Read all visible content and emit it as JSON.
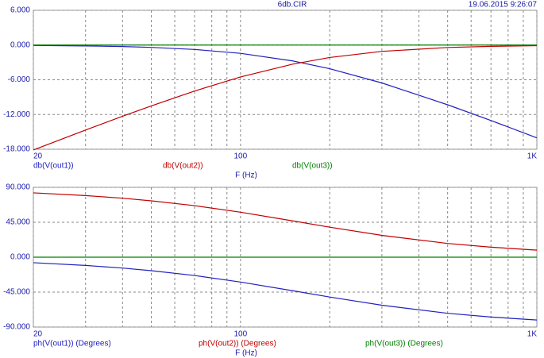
{
  "header": {
    "title": "6db.CIR",
    "timestamp": "19.06.2015 9:26:07"
  },
  "chart_data": [
    {
      "type": "line",
      "xlabel": "F (Hz)",
      "xlog": true,
      "grid": true,
      "x": [
        20,
        30,
        40,
        50,
        70,
        100,
        150,
        200,
        300,
        500,
        700,
        1000
      ],
      "xlim": [
        20,
        1000
      ],
      "xticks": [
        20,
        100,
        {
          "value": 1000,
          "label": "1K"
        }
      ],
      "xminor": [
        30,
        40,
        50,
        60,
        70,
        80,
        90,
        200,
        300,
        400,
        500,
        600,
        700,
        800,
        900
      ],
      "ylim": [
        -18,
        6
      ],
      "yticks": [
        {
          "value": 6,
          "label": "6.000"
        },
        {
          "value": 0,
          "label": "0.000"
        },
        {
          "value": -6,
          "label": "-6.000"
        },
        {
          "value": -12,
          "label": "-12.000"
        },
        {
          "value": -18,
          "label": "-18.000"
        }
      ],
      "series": [
        {
          "name": "db(V(out1))",
          "color": "#2020c0",
          "values": [
            -0.07,
            -0.15,
            -0.26,
            -0.4,
            -0.76,
            -1.43,
            -2.74,
            -4.09,
            -6.55,
            -10.32,
            -13.04,
            -16.03
          ]
        },
        {
          "name": "db(V(out2))",
          "color": "#c00000",
          "values": [
            -18.13,
            -14.69,
            -12.3,
            -10.51,
            -7.94,
            -5.51,
            -3.3,
            -2.15,
            -1.09,
            -0.42,
            -0.22,
            -0.11
          ]
        },
        {
          "name": "db(V(out3))",
          "color": "#008000",
          "values": [
            0,
            0,
            0,
            0,
            0,
            0,
            0,
            0,
            0,
            0,
            0,
            0
          ]
        }
      ]
    },
    {
      "type": "line",
      "xlabel": "F (Hz)",
      "xlog": true,
      "grid": true,
      "x": [
        20,
        30,
        40,
        50,
        70,
        100,
        150,
        200,
        300,
        500,
        700,
        1000
      ],
      "xlim": [
        20,
        1000
      ],
      "xticks": [
        20,
        100,
        {
          "value": 1000,
          "label": "1K"
        }
      ],
      "xminor": [
        30,
        40,
        50,
        60,
        70,
        80,
        90,
        200,
        300,
        400,
        500,
        600,
        700,
        800,
        900
      ],
      "ylim": [
        -90,
        90
      ],
      "yticks": [
        {
          "value": 90,
          "label": "90.000"
        },
        {
          "value": 45,
          "label": "45.000"
        },
        {
          "value": 0,
          "label": "0.000"
        },
        {
          "value": -45,
          "label": "-45.000"
        },
        {
          "value": -90,
          "label": "-90.000"
        }
      ],
      "series": [
        {
          "name": "ph(V(out1)) (Degrees)",
          "color": "#2020c0",
          "values": [
            -7.1,
            -10.6,
            -14.0,
            -17.4,
            -23.6,
            -32.0,
            -43.2,
            -51.3,
            -61.9,
            -72.3,
            -77.1,
            -80.9
          ]
        },
        {
          "name": "ph(V(out2)) (Degrees)",
          "color": "#c00000",
          "values": [
            82.9,
            79.4,
            76.0,
            72.6,
            66.4,
            58.0,
            46.8,
            38.7,
            28.1,
            17.7,
            12.9,
            9.1
          ]
        },
        {
          "name": "ph(V(out3)) (Degrees)",
          "color": "#008000",
          "values": [
            0,
            0,
            0,
            0,
            0,
            0,
            0,
            0,
            0,
            0,
            0,
            0
          ]
        }
      ]
    }
  ]
}
